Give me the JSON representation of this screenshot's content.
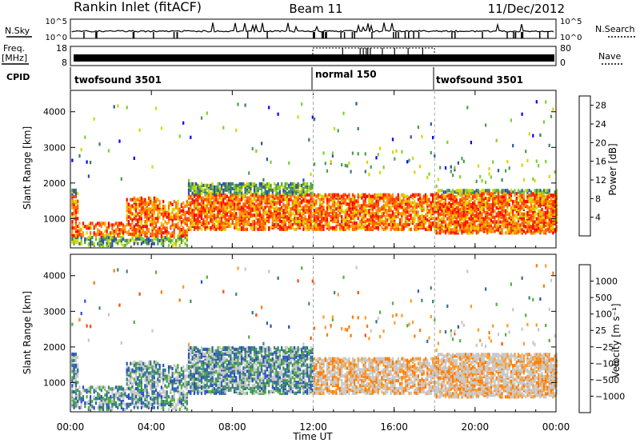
{
  "header": {
    "title": "Rankin Inlet (fitACF)",
    "beam": "Beam 11",
    "date": "11/Dec/2012"
  },
  "top_panels": {
    "nsky_label": "N.Sky",
    "nsky_ticks": [
      "10^5",
      "10^0"
    ],
    "nsearch_label": "N.Search",
    "freq_label": "Freq.",
    "freq_unit": "[MHz]",
    "freq_ticks": [
      "18",
      "8"
    ],
    "nave_ticks": [
      "80",
      "0"
    ],
    "nave_label": "Nave",
    "cpid_label": "CPID",
    "cpid_segments": [
      "twofsound 3501",
      "normal 150",
      "twofsound 3501"
    ]
  },
  "colors": {
    "power": [
      "#0000ff",
      "#2f4fa8",
      "#3d7a62",
      "#4aa14a",
      "#7fcf2f",
      "#d7d700",
      "#ff9a00",
      "#ff6a00",
      "#ff3a00",
      "#ff0000"
    ],
    "velocity": [
      "#2c4fbf",
      "#2e6f9a",
      "#3d8a6a",
      "#52b13a",
      "#c8c8c8",
      "#c8c8c8",
      "#ff9a2a",
      "#ff7a00",
      "#ff4a00",
      "#ff0000"
    ]
  },
  "chart_data": [
    {
      "type": "heatmap",
      "panel": "power",
      "xlabel": "Time UT",
      "ylabel": "Slant Range [km]",
      "x_ticks": [
        "00:00",
        "04:00",
        "08:00",
        "12:00",
        "16:00",
        "20:00",
        "00:00"
      ],
      "xlim_hours": [
        0,
        24
      ],
      "y_ticks": [
        1000,
        2000,
        3000,
        4000
      ],
      "ylim": [
        180,
        4600
      ],
      "colorbar_label": "Power [dB]",
      "colorbar_ticks": [
        4,
        8,
        12,
        16,
        20,
        24,
        28
      ],
      "colorbar_range": [
        0,
        30
      ]
    },
    {
      "type": "heatmap",
      "panel": "velocity",
      "xlabel": "Time UT",
      "ylabel": "Slant Range [km]",
      "x_ticks": [
        "00:00",
        "04:00",
        "08:00",
        "12:00",
        "16:00",
        "20:00",
        "00:00"
      ],
      "xlim_hours": [
        0,
        24
      ],
      "y_ticks": [
        1000,
        2000,
        3000,
        4000
      ],
      "ylim": [
        180,
        4600
      ],
      "colorbar_label": "Velocity [m s⁻¹]",
      "colorbar_ticks": [
        "1000",
        "500",
        "100",
        "25",
        "−25",
        "−100",
        "−500",
        "−1000"
      ]
    }
  ]
}
